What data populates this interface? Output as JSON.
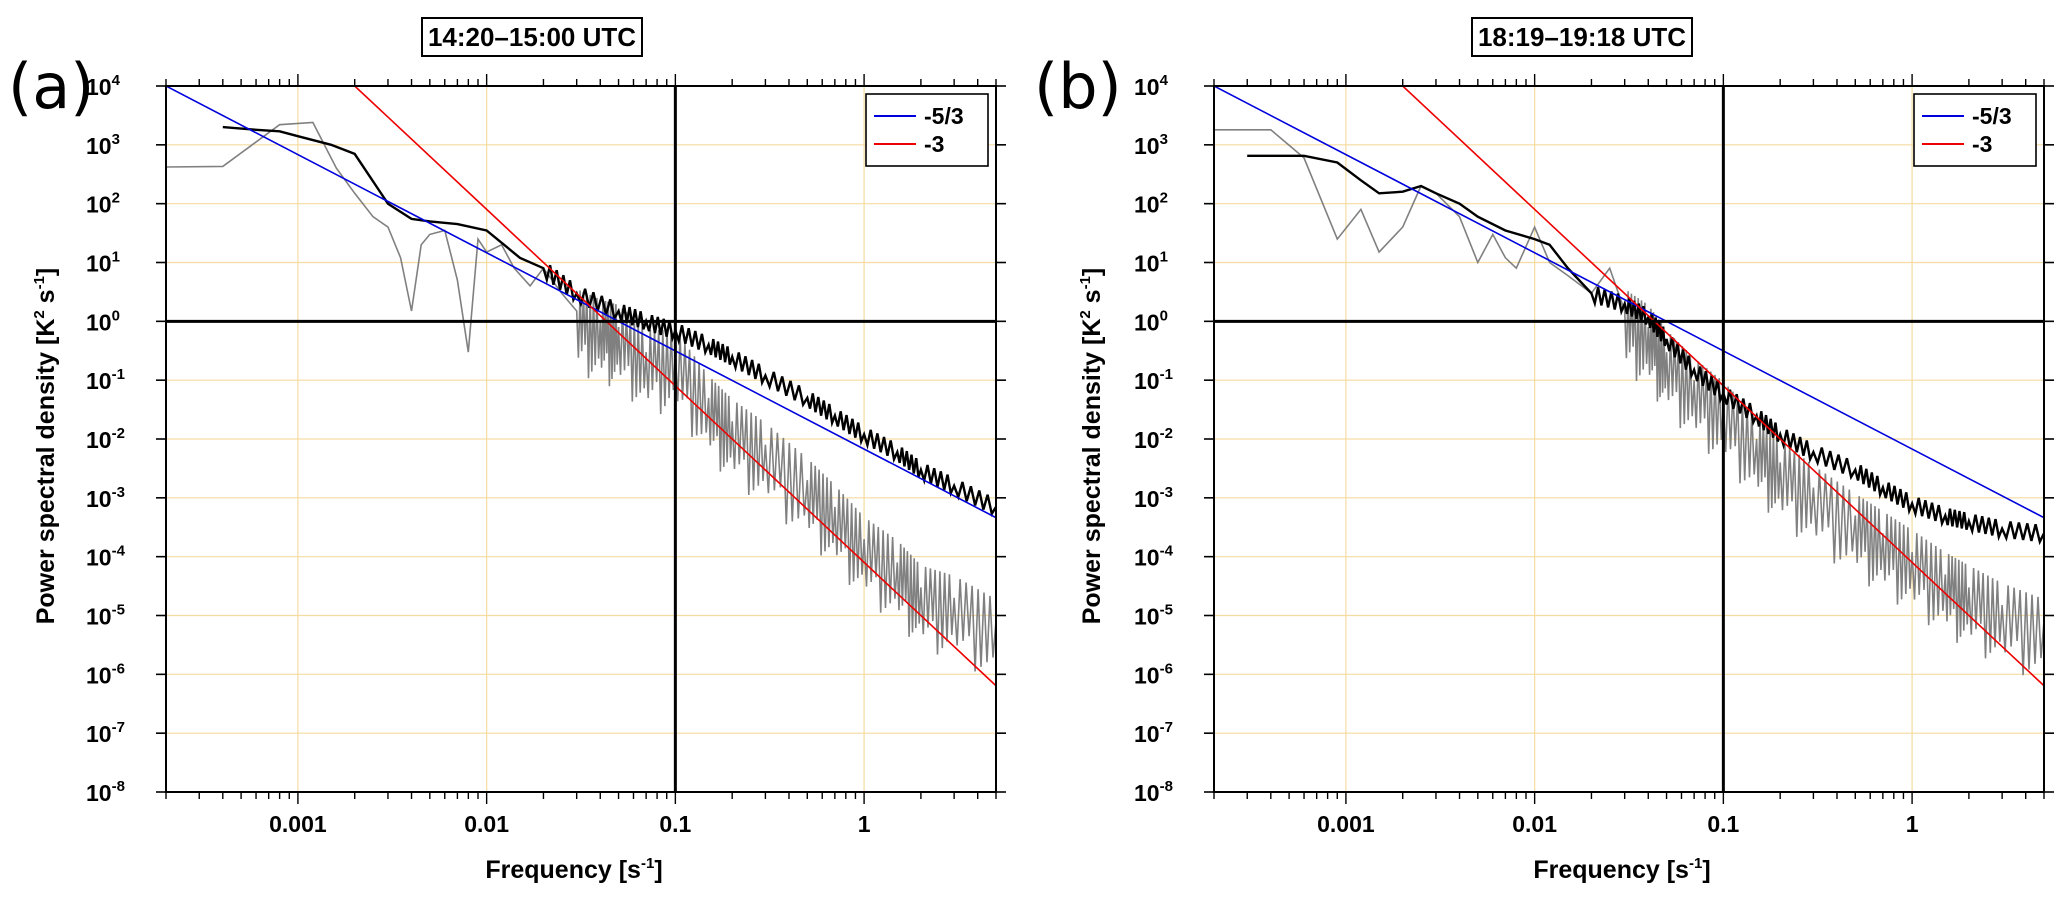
{
  "colors": {
    "observed": "#808080",
    "smoothed": "#000000",
    "slope_minus_5_3": "#0000dd",
    "slope_minus_3": "#ee0000",
    "grid": "#f5dca0"
  },
  "chart_data": [
    {
      "type": "line",
      "panel_label": "(a)",
      "title": "14:20–15:00 UTC",
      "xlabel": "Frequency [s",
      "xlabel_sup": "-1",
      "xlabel_end": "]",
      "ylabel": "Power spectral density [K",
      "ylabel_sup1": "2",
      "ylabel_mid": " s",
      "ylabel_sup2": "-1",
      "ylabel_end": "]",
      "x_scale": "log",
      "y_scale": "log",
      "xlim": [
        0.0002,
        5
      ],
      "ylim": [
        1e-08,
        10000.0
      ],
      "x_tick_labels": [
        "0.001",
        "0.01",
        "0.1",
        "1"
      ],
      "y_tick_exponents": [
        "4",
        "3",
        "2",
        "1",
        "0",
        "-1",
        "-2",
        "-3",
        "-4",
        "-5",
        "-6",
        "-7",
        "-8"
      ],
      "grid": true,
      "legend": "top-right",
      "series": [
        {
          "name": "-5/3",
          "kind": "reference",
          "x": [
            0.0002,
            5
          ],
          "y": [
            10000,
            0.00046
          ]
        },
        {
          "name": "-3",
          "kind": "reference",
          "x": [
            0.002,
            5
          ],
          "y": [
            10000,
            6.4e-07
          ]
        }
      ],
      "spectrum_observed": {
        "x": [
          0.0002,
          0.0004,
          0.0008,
          0.0012,
          0.0016,
          0.002,
          0.0025,
          0.003,
          0.0035,
          0.004,
          0.0045,
          0.005,
          0.006,
          0.007,
          0.008,
          0.009,
          0.01,
          0.012,
          0.014,
          0.017,
          0.02,
          0.025,
          0.03,
          0.04,
          0.05,
          0.07,
          0.1,
          0.15,
          0.2,
          0.3,
          0.5,
          0.7,
          1,
          1.5,
          2,
          3,
          5
        ],
        "y": [
          420,
          430,
          2200,
          2400,
          400,
          150,
          60,
          40,
          12,
          1.5,
          20,
          30,
          35,
          5,
          0.3,
          25,
          15,
          20,
          8,
          4,
          8,
          3,
          1.5,
          1,
          0.8,
          0.3,
          0.3,
          0.05,
          0.02,
          0.008,
          0.002,
          0.0007,
          0.0002,
          8e-05,
          3e-05,
          2e-05,
          8e-06
        ]
      },
      "spectrum_smoothed": {
        "x": [
          0.0004,
          0.0006,
          0.0008,
          0.001,
          0.0015,
          0.002,
          0.003,
          0.004,
          0.005,
          0.007,
          0.01,
          0.015,
          0.02,
          0.03,
          0.05,
          0.07,
          0.1,
          0.15,
          0.2,
          0.3,
          0.5,
          0.7,
          1,
          1.5,
          2,
          3,
          5
        ],
        "y": [
          2000,
          1800,
          1700,
          1400,
          1000,
          700,
          100,
          55,
          50,
          45,
          35,
          12,
          8,
          3,
          1.5,
          1,
          0.7,
          0.4,
          0.25,
          0.12,
          0.05,
          0.025,
          0.012,
          0.006,
          0.003,
          0.0016,
          0.0007
        ]
      }
    },
    {
      "type": "line",
      "panel_label": "(b)",
      "title": "18:19–19:18 UTC",
      "xlabel": "Frequency [s",
      "xlabel_sup": "-1",
      "xlabel_end": "]",
      "ylabel": "Power spectral density [K",
      "ylabel_sup1": "2",
      "ylabel_mid": " s",
      "ylabel_sup2": "-1",
      "ylabel_end": "]",
      "x_scale": "log",
      "y_scale": "log",
      "xlim": [
        0.0002,
        5
      ],
      "ylim": [
        1e-08,
        10000.0
      ],
      "x_tick_labels": [
        "0.001",
        "0.01",
        "0.1",
        "1"
      ],
      "y_tick_exponents": [
        "4",
        "3",
        "2",
        "1",
        "0",
        "-1",
        "-2",
        "-3",
        "-4",
        "-5",
        "-6",
        "-7",
        "-8"
      ],
      "grid": true,
      "legend": "top-right",
      "series": [
        {
          "name": "-5/3",
          "kind": "reference",
          "x": [
            0.0002,
            5
          ],
          "y": [
            10000,
            0.00046
          ]
        },
        {
          "name": "-3",
          "kind": "reference",
          "x": [
            0.002,
            5
          ],
          "y": [
            10000,
            6.4e-07
          ]
        }
      ],
      "spectrum_observed": {
        "x": [
          0.0002,
          0.0004,
          0.0006,
          0.0009,
          0.0012,
          0.0015,
          0.002,
          0.0025,
          0.003,
          0.004,
          0.005,
          0.006,
          0.007,
          0.008,
          0.01,
          0.012,
          0.015,
          0.02,
          0.025,
          0.03,
          0.04,
          0.05,
          0.07,
          0.1,
          0.15,
          0.2,
          0.3,
          0.5,
          0.7,
          1,
          1.5,
          2,
          3,
          5
        ],
        "y": [
          1800,
          1800,
          600,
          25,
          80,
          15,
          40,
          200,
          150,
          60,
          10,
          30,
          12,
          8,
          40,
          10,
          6,
          3,
          8,
          1.5,
          0.8,
          0.3,
          0.1,
          0.04,
          0.01,
          0.004,
          0.0015,
          0.0005,
          0.00025,
          0.00012,
          5e-05,
          3e-05,
          1.5e-05,
          8e-06
        ]
      },
      "spectrum_smoothed": {
        "x": [
          0.0003,
          0.0006,
          0.0009,
          0.0012,
          0.0015,
          0.002,
          0.0025,
          0.003,
          0.004,
          0.005,
          0.007,
          0.01,
          0.012,
          0.015,
          0.02,
          0.03,
          0.04,
          0.05,
          0.07,
          0.1,
          0.15,
          0.2,
          0.3,
          0.5,
          0.7,
          1,
          1.5,
          2,
          3,
          5
        ],
        "y": [
          650,
          650,
          500,
          250,
          150,
          160,
          200,
          150,
          100,
          60,
          35,
          25,
          20,
          8,
          3,
          2,
          1.2,
          0.5,
          0.15,
          0.06,
          0.025,
          0.012,
          0.006,
          0.003,
          0.0015,
          0.0008,
          0.0005,
          0.0004,
          0.0003,
          0.00025
        ]
      }
    }
  ],
  "legend_entries": [
    "-5/3",
    "-3"
  ]
}
